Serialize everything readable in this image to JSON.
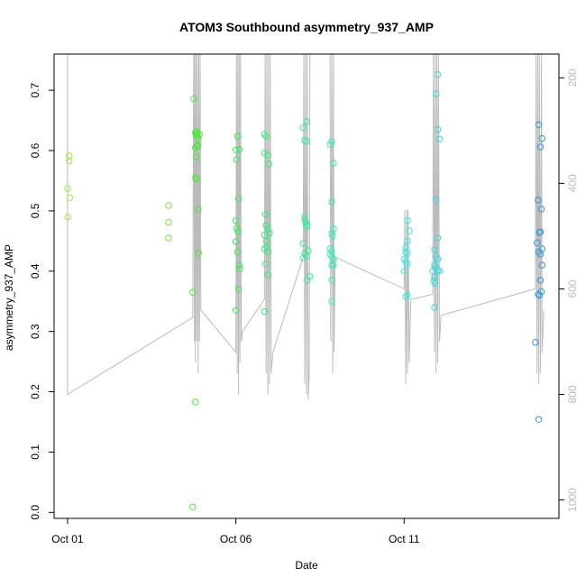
{
  "chart_data": {
    "type": "scatter",
    "title": "ATOM3 Southbound asymmetry_937_AMP",
    "xlabel": "Date",
    "ylabel": "asymmetry_937_AMP",
    "x_ticks": [
      {
        "label": "Oct 01",
        "value": 0
      },
      {
        "label": "Oct 06",
        "value": 5
      },
      {
        "label": "Oct 11",
        "value": 10
      }
    ],
    "xlim": [
      -0.4,
      14.6
    ],
    "ylim": [
      -0.01,
      0.76
    ],
    "y_ticks": [
      0.0,
      0.1,
      0.2,
      0.3,
      0.4,
      0.5,
      0.6,
      0.7
    ],
    "y2_ticks": [
      200,
      400,
      600,
      800,
      1000
    ],
    "y2lim": [
      1035,
      155
    ],
    "grid": false,
    "point_style": "open-circle",
    "colors": {
      "series_oct01": "#99ee33",
      "series_oct04": "#77ee33",
      "series_oct05": "#44ee33",
      "series_oct06": "#33ee55",
      "series_oct07": "#33ee77",
      "series_oct08": "#33ee99",
      "series_oct09": "#33eebb",
      "series_oct11": "#33eedd",
      "series_oct12": "#33dddd",
      "series_oct14": "#3399dd",
      "secondary_line": "#bbbbbb"
    },
    "series": [
      {
        "color_key": "series_oct01",
        "points": [
          [
            0.0,
            0.537
          ],
          [
            0.05,
            0.591
          ],
          [
            0.05,
            0.583
          ],
          [
            0.07,
            0.522
          ],
          [
            0.0,
            0.49
          ]
        ]
      },
      {
        "color_key": "series_oct04",
        "points": [
          [
            3.0,
            0.509
          ],
          [
            3.0,
            0.481
          ],
          [
            3.0,
            0.455
          ]
        ]
      },
      {
        "color_key": "series_oct05",
        "points": [
          [
            3.75,
            0.686
          ],
          [
            3.72,
            0.365
          ],
          [
            3.72,
            0.009
          ],
          [
            3.8,
            0.183
          ],
          [
            3.8,
            0.63
          ],
          [
            3.82,
            0.627
          ],
          [
            3.84,
            0.631
          ],
          [
            3.86,
            0.625
          ],
          [
            3.88,
            0.62
          ],
          [
            3.8,
            0.604
          ],
          [
            3.85,
            0.607
          ],
          [
            3.87,
            0.608
          ],
          [
            3.82,
            0.59
          ],
          [
            3.8,
            0.555
          ],
          [
            3.83,
            0.553
          ],
          [
            3.88,
            0.503
          ],
          [
            3.9,
            0.43
          ],
          [
            3.92,
            0.627
          ]
        ]
      },
      {
        "color_key": "series_oct06",
        "points": [
          [
            5.0,
            0.601
          ],
          [
            5.1,
            0.602
          ],
          [
            5.05,
            0.624
          ],
          [
            5.02,
            0.585
          ],
          [
            5.08,
            0.52
          ],
          [
            5.0,
            0.484
          ],
          [
            5.03,
            0.471
          ],
          [
            5.06,
            0.466
          ],
          [
            5.0,
            0.449
          ],
          [
            5.05,
            0.432
          ],
          [
            5.1,
            0.41
          ],
          [
            5.12,
            0.404
          ],
          [
            5.0,
            0.335
          ],
          [
            5.08,
            0.37
          ]
        ]
      },
      {
        "color_key": "series_oct07",
        "points": [
          [
            5.85,
            0.627
          ],
          [
            5.9,
            0.623
          ],
          [
            5.85,
            0.596
          ],
          [
            5.95,
            0.592
          ],
          [
            5.98,
            0.578
          ],
          [
            5.88,
            0.494
          ],
          [
            5.9,
            0.476
          ],
          [
            5.95,
            0.47
          ],
          [
            5.85,
            0.46
          ],
          [
            5.9,
            0.45
          ],
          [
            5.92,
            0.44
          ],
          [
            5.85,
            0.437
          ],
          [
            5.95,
            0.432
          ],
          [
            5.88,
            0.412
          ],
          [
            5.95,
            0.394
          ],
          [
            5.85,
            0.333
          ],
          [
            6.0,
            0.463
          ]
        ]
      },
      {
        "color_key": "series_oct08",
        "points": [
          [
            7.0,
            0.638
          ],
          [
            7.1,
            0.648
          ],
          [
            7.05,
            0.617
          ],
          [
            7.1,
            0.615
          ],
          [
            7.05,
            0.49
          ],
          [
            7.05,
            0.485
          ],
          [
            7.08,
            0.48
          ],
          [
            7.1,
            0.476
          ],
          [
            7.12,
            0.474
          ],
          [
            7.15,
            0.434
          ],
          [
            7.0,
            0.446
          ],
          [
            7.05,
            0.43
          ],
          [
            7.1,
            0.425
          ],
          [
            7.0,
            0.422
          ],
          [
            7.12,
            0.385
          ],
          [
            7.2,
            0.391
          ]
        ]
      },
      {
        "color_key": "series_oct09",
        "points": [
          [
            7.8,
            0.61
          ],
          [
            7.85,
            0.615
          ],
          [
            7.9,
            0.579
          ],
          [
            7.85,
            0.515
          ],
          [
            7.9,
            0.47
          ],
          [
            7.85,
            0.463
          ],
          [
            7.88,
            0.458
          ],
          [
            7.8,
            0.437
          ],
          [
            7.85,
            0.433
          ],
          [
            7.8,
            0.428
          ],
          [
            7.85,
            0.425
          ],
          [
            7.9,
            0.42
          ],
          [
            7.85,
            0.41
          ],
          [
            7.9,
            0.41
          ],
          [
            7.85,
            0.385
          ],
          [
            7.85,
            0.35
          ]
        ]
      },
      {
        "color_key": "series_oct11",
        "points": [
          [
            10.1,
            0.484
          ],
          [
            10.15,
            0.467
          ],
          [
            10.05,
            0.44
          ],
          [
            10.1,
            0.45
          ],
          [
            10.05,
            0.432
          ],
          [
            10.1,
            0.43
          ],
          [
            10.0,
            0.42
          ],
          [
            10.05,
            0.415
          ],
          [
            10.1,
            0.412
          ],
          [
            10.0,
            0.4
          ],
          [
            10.05,
            0.358
          ],
          [
            10.1,
            0.36
          ]
        ]
      },
      {
        "color_key": "series_oct12",
        "points": [
          [
            11.0,
            0.726
          ],
          [
            10.95,
            0.694
          ],
          [
            11.0,
            0.635
          ],
          [
            11.05,
            0.619
          ],
          [
            10.95,
            0.518
          ],
          [
            11.0,
            0.455
          ],
          [
            10.9,
            0.436
          ],
          [
            10.95,
            0.424
          ],
          [
            11.0,
            0.42
          ],
          [
            10.9,
            0.41
          ],
          [
            11.0,
            0.401
          ],
          [
            11.05,
            0.4
          ],
          [
            10.85,
            0.4
          ],
          [
            10.9,
            0.39
          ],
          [
            10.88,
            0.384
          ],
          [
            10.92,
            0.38
          ],
          [
            10.9,
            0.34
          ],
          [
            10.95,
            0.406
          ]
        ]
      },
      {
        "color_key": "series_oct14",
        "points": [
          [
            14.0,
            0.643
          ],
          [
            14.1,
            0.62
          ],
          [
            14.05,
            0.606
          ],
          [
            13.98,
            0.518
          ],
          [
            14.08,
            0.503
          ],
          [
            14.05,
            0.465
          ],
          [
            14.02,
            0.464
          ],
          [
            13.95,
            0.447
          ],
          [
            14.1,
            0.437
          ],
          [
            14.0,
            0.432
          ],
          [
            14.05,
            0.428
          ],
          [
            14.1,
            0.41
          ],
          [
            14.05,
            0.385
          ],
          [
            14.08,
            0.366
          ],
          [
            13.98,
            0.362
          ],
          [
            14.02,
            0.36
          ],
          [
            13.9,
            0.282
          ],
          [
            14.0,
            0.154
          ]
        ]
      }
    ],
    "secondary_line": [
      [
        0.0,
        155
      ],
      [
        0.0,
        800
      ],
      [
        3.7,
        655
      ],
      [
        3.72,
        655
      ],
      [
        3.75,
        155
      ],
      [
        3.77,
        700
      ],
      [
        3.78,
        155
      ],
      [
        3.8,
        740
      ],
      [
        3.82,
        155
      ],
      [
        3.84,
        700
      ],
      [
        3.86,
        155
      ],
      [
        3.88,
        760
      ],
      [
        3.9,
        155
      ],
      [
        3.92,
        700
      ],
      [
        3.94,
        155
      ],
      [
        3.96,
        640
      ],
      [
        5.0,
        720
      ],
      [
        5.02,
        155
      ],
      [
        5.04,
        760
      ],
      [
        5.06,
        155
      ],
      [
        5.08,
        800
      ],
      [
        5.1,
        155
      ],
      [
        5.12,
        740
      ],
      [
        5.14,
        155
      ],
      [
        5.16,
        700
      ],
      [
        5.2,
        680
      ],
      [
        5.85,
        620
      ],
      [
        5.87,
        155
      ],
      [
        5.9,
        760
      ],
      [
        5.92,
        155
      ],
      [
        5.95,
        800
      ],
      [
        5.97,
        155
      ],
      [
        6.0,
        780
      ],
      [
        6.02,
        155
      ],
      [
        6.05,
        760
      ],
      [
        6.1,
        720
      ],
      [
        7.0,
        540
      ],
      [
        7.02,
        155
      ],
      [
        7.05,
        780
      ],
      [
        7.07,
        155
      ],
      [
        7.1,
        800
      ],
      [
        7.12,
        155
      ],
      [
        7.15,
        810
      ],
      [
        7.18,
        760
      ],
      [
        7.2,
        155
      ],
      [
        7.8,
        155
      ],
      [
        7.82,
        700
      ],
      [
        7.85,
        155
      ],
      [
        7.88,
        760
      ],
      [
        7.9,
        155
      ],
      [
        7.92,
        720
      ],
      [
        7.95,
        540
      ],
      [
        10.0,
        600
      ],
      [
        10.02,
        450
      ],
      [
        10.05,
        780
      ],
      [
        10.08,
        450
      ],
      [
        10.1,
        760
      ],
      [
        10.12,
        450
      ],
      [
        10.15,
        740
      ],
      [
        10.2,
        620
      ],
      [
        10.85,
        610
      ],
      [
        10.87,
        155
      ],
      [
        10.9,
        720
      ],
      [
        10.92,
        155
      ],
      [
        10.95,
        760
      ],
      [
        10.97,
        155
      ],
      [
        11.0,
        740
      ],
      [
        11.02,
        155
      ],
      [
        11.05,
        700
      ],
      [
        11.1,
        650
      ],
      [
        13.9,
        600
      ],
      [
        13.92,
        155
      ],
      [
        13.95,
        760
      ],
      [
        13.97,
        155
      ],
      [
        14.0,
        780
      ],
      [
        14.02,
        155
      ],
      [
        14.05,
        760
      ],
      [
        14.08,
        155
      ],
      [
        14.1,
        720
      ],
      [
        14.15,
        640
      ]
    ]
  }
}
